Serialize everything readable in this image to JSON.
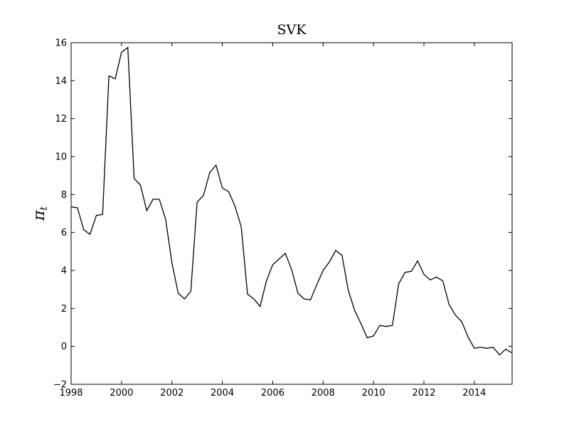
{
  "chart_data": {
    "type": "line",
    "title": "SVK",
    "xlabel": "",
    "ylabel": "π",
    "ylabel_subscript": "t",
    "xlim": [
      1998,
      2015.5
    ],
    "ylim": [
      -2,
      16
    ],
    "xticks": [
      1998,
      2000,
      2002,
      2004,
      2006,
      2008,
      2010,
      2012,
      2014
    ],
    "yticks": [
      -2,
      0,
      2,
      4,
      6,
      8,
      10,
      12,
      14,
      16
    ],
    "grid": false,
    "legend": "none",
    "line_color": "#000000",
    "series": [
      {
        "x": [
          1998.0,
          1998.25,
          1998.5,
          1998.75,
          1999.0,
          1999.25,
          1999.5,
          1999.75,
          2000.0,
          2000.25,
          2000.5,
          2000.75,
          2001.0,
          2001.25,
          2001.5,
          2001.75,
          2002.0,
          2002.25,
          2002.5,
          2002.75,
          2003.0,
          2003.25,
          2003.5,
          2003.75,
          2004.0,
          2004.25,
          2004.5,
          2004.75,
          2005.0,
          2005.25,
          2005.5,
          2005.75,
          2006.0,
          2006.25,
          2006.5,
          2006.75,
          2007.0,
          2007.25,
          2007.5,
          2007.75,
          2008.0,
          2008.25,
          2008.5,
          2008.75,
          2009.0,
          2009.25,
          2009.5,
          2009.75,
          2010.0,
          2010.25,
          2010.5,
          2010.75,
          2011.0,
          2011.25,
          2011.5,
          2011.75,
          2012.0,
          2012.25,
          2012.5,
          2012.75,
          2013.0,
          2013.25,
          2013.5,
          2013.75,
          2014.0,
          2014.25,
          2014.5,
          2014.75,
          2015.0,
          2015.25,
          2015.5
        ],
        "values": [
          7.35,
          7.3,
          6.15,
          5.9,
          6.9,
          6.95,
          14.25,
          14.1,
          15.5,
          15.75,
          8.85,
          8.5,
          7.15,
          7.75,
          7.75,
          6.7,
          4.4,
          2.8,
          2.5,
          2.9,
          7.6,
          7.95,
          9.15,
          9.55,
          8.35,
          8.15,
          7.4,
          6.3,
          2.75,
          2.5,
          2.1,
          3.45,
          4.3,
          4.6,
          4.9,
          4.05,
          2.8,
          2.5,
          2.45,
          3.25,
          4.0,
          4.45,
          5.05,
          4.8,
          2.95,
          1.9,
          1.2,
          0.45,
          0.55,
          1.1,
          1.05,
          1.1,
          3.3,
          3.9,
          3.95,
          4.5,
          3.8,
          3.5,
          3.65,
          3.45,
          2.2,
          1.65,
          1.3,
          0.5,
          -0.1,
          -0.05,
          -0.1,
          -0.05,
          -0.45,
          -0.15,
          -0.35
        ]
      }
    ]
  }
}
